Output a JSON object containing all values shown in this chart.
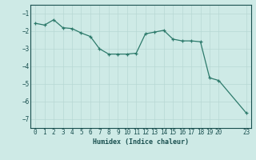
{
  "x": [
    0,
    1,
    2,
    3,
    4,
    5,
    6,
    7,
    8,
    9,
    10,
    11,
    12,
    13,
    14,
    15,
    16,
    17,
    18,
    19,
    20,
    23
  ],
  "y": [
    -1.55,
    -1.65,
    -1.35,
    -1.8,
    -1.85,
    -2.1,
    -2.3,
    -3.0,
    -3.3,
    -3.3,
    -3.3,
    -3.25,
    -2.15,
    -2.05,
    -1.95,
    -2.45,
    -2.55,
    -2.55,
    -2.6,
    -4.65,
    -4.8,
    -6.65
  ],
  "xlabel": "Humidex (Indice chaleur)",
  "xlim": [
    -0.5,
    23.5
  ],
  "ylim": [
    -7.5,
    -0.5
  ],
  "yticks": [
    -7,
    -6,
    -5,
    -4,
    -3,
    -2,
    -1
  ],
  "xticks": [
    0,
    1,
    2,
    3,
    4,
    5,
    6,
    7,
    8,
    9,
    10,
    11,
    12,
    13,
    14,
    15,
    16,
    17,
    18,
    19,
    20,
    23
  ],
  "line_color": "#2d7a6b",
  "bg_color": "#ceeae6",
  "grid_color_major": "#b8d8d4",
  "grid_color_minor": "#daeeed",
  "axis_color": "#1a5050",
  "tick_label_color": "#1a5050",
  "xlabel_color": "#1a5050"
}
